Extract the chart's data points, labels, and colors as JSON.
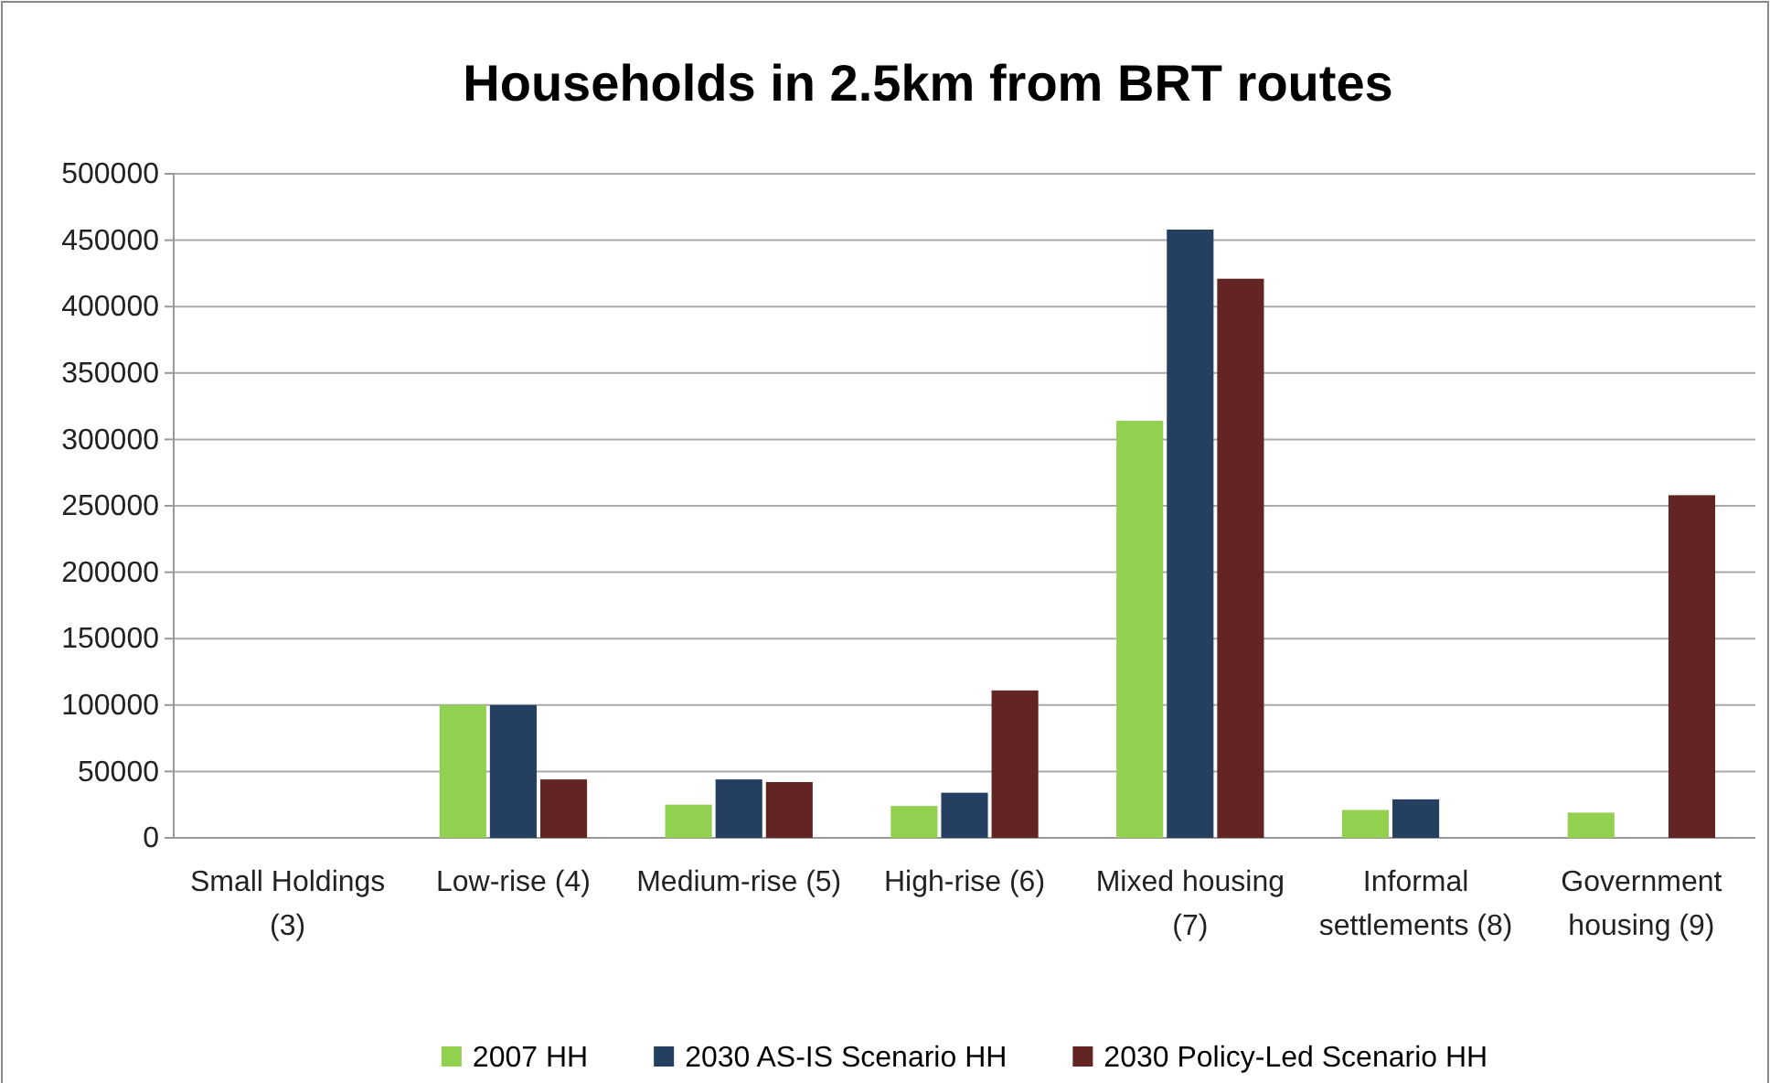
{
  "chart_data": {
    "type": "bar",
    "title": "Households in 2.5km from BRT routes",
    "categories": [
      "Small Holdings (3)",
      "Low-rise (4)",
      "Medium-rise (5)",
      "High-rise (6)",
      "Mixed housing (7)",
      "Informal settlements (8)",
      "Government housing (9)"
    ],
    "series": [
      {
        "name": "2007 HH",
        "color": "#92d050",
        "values": [
          0,
          100000,
          25000,
          24000,
          314000,
          21000,
          19000
        ]
      },
      {
        "name": "2030 AS-IS Scenario HH",
        "color": "#243f60",
        "values": [
          0,
          100000,
          44000,
          34000,
          458000,
          29000,
          0
        ]
      },
      {
        "name": "2030 Policy-Led Scenario HH",
        "color": "#632523",
        "values": [
          0,
          44000,
          42000,
          111000,
          421000,
          0,
          258000
        ]
      }
    ],
    "ylim": [
      0,
      500000
    ],
    "yticks": [
      0,
      50000,
      100000,
      150000,
      200000,
      250000,
      300000,
      350000,
      400000,
      450000,
      500000
    ],
    "grid": "y",
    "legend": "bottom"
  }
}
